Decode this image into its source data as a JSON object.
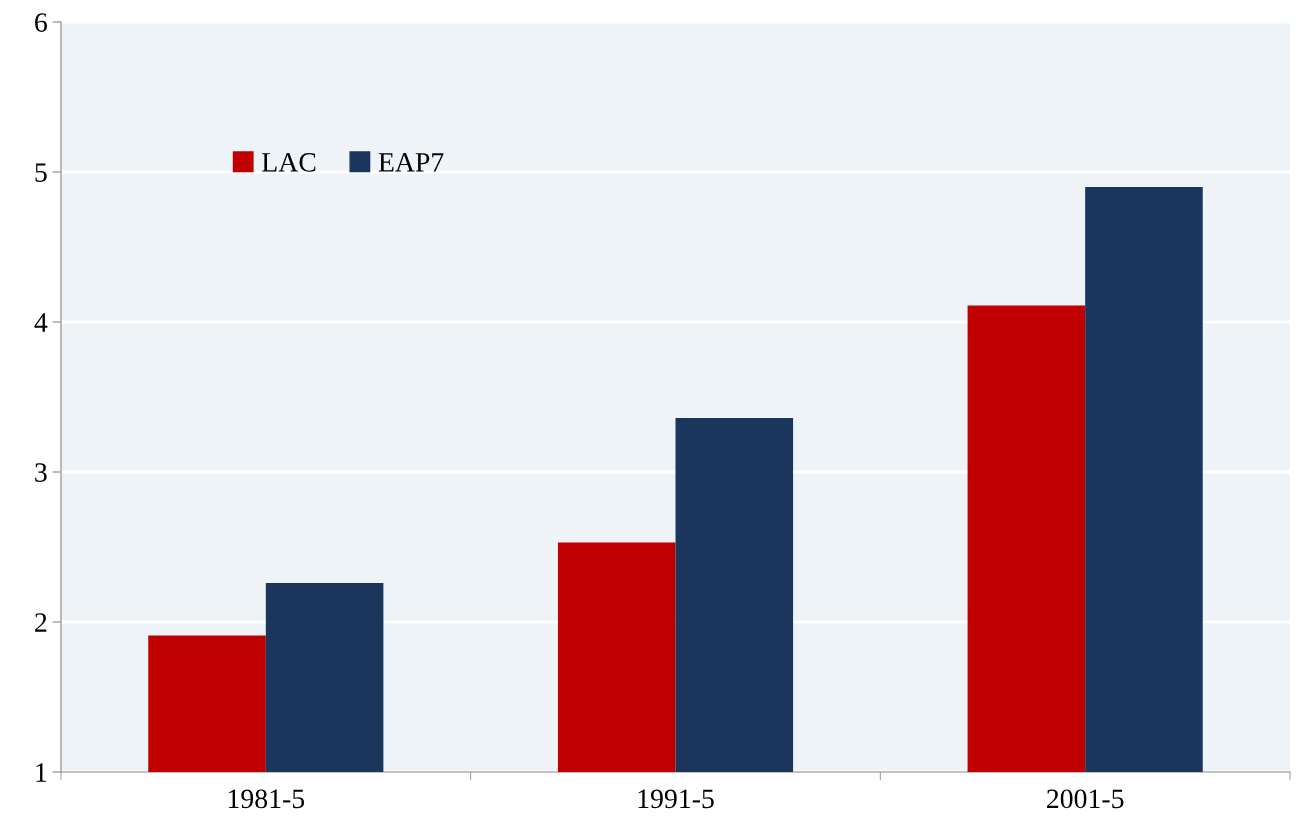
{
  "chart_data": {
    "type": "bar",
    "categories": [
      "1981-5",
      "1991-5",
      "2001-5"
    ],
    "series": [
      {
        "name": "LAC",
        "color": "#c00000",
        "values": [
          1.91,
          2.53,
          4.11
        ]
      },
      {
        "name": "EAP7",
        "color": "#1a365d",
        "values": [
          2.26,
          3.36,
          4.9
        ]
      }
    ],
    "ylim": [
      1,
      6
    ],
    "yticks": [
      1,
      2,
      3,
      4,
      5,
      6
    ],
    "grid": "y",
    "legend": "top left"
  }
}
